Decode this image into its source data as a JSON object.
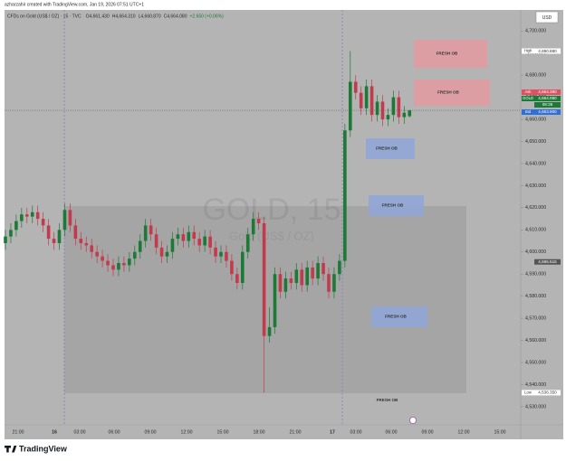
{
  "header": {
    "credit": "azharzahir created with TradingView.com, Jan 19, 2026 07:51 UTC+1",
    "symbol": "CFDs on Gold (US$ / OZ) · 15 · TVC",
    "ohlc": [
      "O4,661.430",
      "H4,664.310",
      "L4,660.870",
      "C4,664.080",
      "+2.650 (+0.06%)"
    ],
    "currency": "USD",
    "countdown": "08:36"
  },
  "chart_data": {
    "type": "candlestick",
    "watermark": "GOLD, 15",
    "watermark_sub": "Gold (US$ / OZ)",
    "open": [
      4604,
      4607,
      4610,
      4614,
      4617,
      4616,
      4618,
      4615,
      4612,
      4606,
      4604,
      4610,
      4619,
      4612,
      4606,
      4604,
      4603,
      4600,
      4598,
      4596,
      4594,
      4592,
      4595,
      4594,
      4597,
      4600,
      4605,
      4612,
      4608,
      4602,
      4598,
      4600,
      4606,
      4608,
      4605,
      4609,
      4606,
      4603,
      4607,
      4602,
      4598,
      4600,
      4596,
      4590,
      4586,
      4600,
      4608,
      4615,
      4613,
      4562,
      4566,
      4590,
      4582,
      4588,
      4586,
      4592,
      4585,
      4593,
      4588,
      4595,
      4590,
      4582,
      4590,
      4596,
      4655,
      4677,
      4672,
      4665,
      4675,
      4662,
      4668,
      4660,
      4662,
      4670,
      4661,
      4661.43
    ],
    "high": [
      4610,
      4613,
      4617,
      4620,
      4620,
      4621,
      4621,
      4618,
      4615,
      4609,
      4613,
      4622,
      4622,
      4615,
      4609,
      4607,
      4606,
      4603,
      4601,
      4599,
      4597,
      4598,
      4598,
      4600,
      4603,
      4608,
      4615,
      4615,
      4611,
      4605,
      4603,
      4609,
      4611,
      4611,
      4612,
      4612,
      4609,
      4610,
      4610,
      4605,
      4603,
      4603,
      4599,
      4593,
      4603,
      4611,
      4618,
      4618,
      4616,
      4575,
      4593,
      4593,
      4591,
      4591,
      4595,
      4595,
      4596,
      4596,
      4598,
      4598,
      4593,
      4593,
      4599,
      4658,
      4690.88,
      4680,
      4675,
      4678,
      4678,
      4671,
      4671,
      4665,
      4673,
      4673,
      4666,
      4664.31
    ],
    "low": [
      4601,
      4604,
      4607,
      4611,
      4613,
      4613,
      4612,
      4609,
      4603,
      4601,
      4601,
      4607,
      4609,
      4603,
      4601,
      4600,
      4597,
      4595,
      4593,
      4591,
      4589,
      4589,
      4591,
      4591,
      4594,
      4597,
      4602,
      4605,
      4599,
      4595,
      4595,
      4597,
      4603,
      4602,
      4602,
      4603,
      4600,
      4600,
      4599,
      4595,
      4595,
      4593,
      4587,
      4583,
      4583,
      4597,
      4605,
      4610,
      4536.35,
      4559,
      4563,
      4579,
      4579,
      4583,
      4583,
      4582,
      4582,
      4585,
      4585,
      4587,
      4579,
      4579,
      4587,
      4593,
      4652,
      4669,
      4662,
      4662,
      4659,
      4659,
      4657,
      4657,
      4659,
      4658,
      4658,
      4660.87
    ],
    "close": [
      4607,
      4610,
      4614,
      4617,
      4616,
      4618,
      4615,
      4612,
      4606,
      4604,
      4610,
      4619,
      4612,
      4606,
      4604,
      4603,
      4600,
      4598,
      4596,
      4594,
      4592,
      4595,
      4594,
      4597,
      4600,
      4605,
      4612,
      4608,
      4602,
      4598,
      4600,
      4606,
      4608,
      4605,
      4609,
      4606,
      4603,
      4607,
      4602,
      4598,
      4600,
      4596,
      4590,
      4586,
      4600,
      4608,
      4615,
      4613,
      4562,
      4566,
      4590,
      4582,
      4588,
      4586,
      4592,
      4585,
      4593,
      4588,
      4595,
      4590,
      4582,
      4590,
      4596,
      4655,
      4677,
      4672,
      4665,
      4675,
      4662,
      4668,
      4660,
      4662,
      4670,
      4661,
      4663,
      4664.08
    ],
    "up_color": "#1d7a36",
    "down_color": "#c33a4c",
    "ylim": [
      4521.8,
      4709.5
    ],
    "yticks": [
      {
        "value": 4530,
        "label": "4,530.000"
      },
      {
        "value": 4540,
        "label": "4,540.000"
      },
      {
        "value": 4550,
        "label": "4,550.000"
      },
      {
        "value": 4560,
        "label": "4,560.000"
      },
      {
        "value": 4570,
        "label": "4,570.000"
      },
      {
        "value": 4580,
        "label": "4,580.000"
      },
      {
        "value": 4590,
        "label": "4,590.000"
      },
      {
        "value": 4600,
        "label": "4,600.000"
      },
      {
        "value": 4610,
        "label": "4,610.000"
      },
      {
        "value": 4620,
        "label": "4,620.000"
      },
      {
        "value": 4630,
        "label": "4,630.000"
      },
      {
        "value": 4640,
        "label": "4,640.000"
      },
      {
        "value": 4650,
        "label": "4,650.000"
      },
      {
        "value": 4660,
        "label": "4,660.000"
      },
      {
        "value": 4670,
        "label": "4,670.000"
      },
      {
        "value": 4680,
        "label": "4,680.000"
      },
      {
        "value": 4690,
        "label": "4,690.000"
      },
      {
        "value": 4700,
        "label": "4,700.000"
      }
    ],
    "xticks": [
      "21:00",
      "16",
      "03:00",
      "06:00",
      "09:00",
      "12:00",
      "15:00",
      "18:00",
      "21:00",
      "17",
      "03:00",
      "06:00",
      "09:00",
      "12:00",
      "15:00"
    ],
    "price_labels": [
      {
        "name": "High",
        "value": 4690.88,
        "label": "4,690.880",
        "color": "#ffffff"
      },
      {
        "name": "Ask",
        "value": 4664.38,
        "label": "4,664.380",
        "color": "#e0505f"
      },
      {
        "name": "GOLD",
        "value": 4664.08,
        "label": "4,664.080",
        "color": "#1d7a36"
      },
      {
        "name": "Bid",
        "value": 4663.9,
        "label": "4,663.900",
        "color": "#2e6fd9"
      },
      {
        "value": 4595.515,
        "label": "4,595.515",
        "color": "#555555"
      },
      {
        "name": "Low",
        "value": 4536.35,
        "label": "4,536.350",
        "color": "#ffffff"
      }
    ],
    "zones": [
      {
        "label": "FRESH OB",
        "color": "#e49aa0"
      },
      {
        "label": "FRESH OB",
        "color": "#e49aa0"
      },
      {
        "label": "FRESH OB",
        "color": "#8ea6d8"
      },
      {
        "label": "FRESH OB",
        "color": "#8ea6d8"
      },
      {
        "label": "FRESH OB",
        "color": "#8ea6d8"
      },
      {
        "label": "FRESH OB"
      }
    ]
  },
  "branding": "TradingView"
}
